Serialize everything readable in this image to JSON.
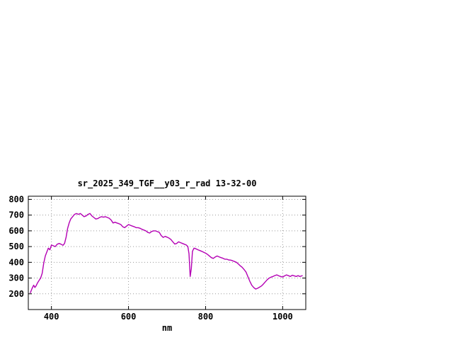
{
  "window": {
    "background": "#ffffff"
  },
  "chart_data": {
    "type": "line",
    "title": "sr_2025_349_TGF__y03_r_rad 13-32-00",
    "xlabel": "nm",
    "ylabel": "",
    "xlim": [
      340,
      1060
    ],
    "ylim": [
      100,
      820
    ],
    "xticks": [
      400,
      600,
      800,
      1000
    ],
    "yticks": [
      200,
      300,
      400,
      500,
      600,
      700,
      800
    ],
    "grid": true,
    "legend": "none",
    "line_color": "#b400b4",
    "series": [
      {
        "name": "sr_2025_349_TGF__y03_r_rad",
        "color": "#b400b4",
        "x": [
          345,
          350,
          354,
          357,
          360,
          364,
          368,
          372,
          376,
          380,
          384,
          388,
          392,
          396,
          400,
          405,
          410,
          415,
          420,
          425,
          430,
          434,
          438,
          442,
          446,
          450,
          455,
          460,
          465,
          470,
          475,
          480,
          485,
          490,
          495,
          500,
          505,
          510,
          515,
          520,
          525,
          530,
          535,
          540,
          545,
          550,
          555,
          560,
          565,
          570,
          575,
          580,
          585,
          590,
          595,
          600,
          605,
          610,
          615,
          620,
          625,
          630,
          635,
          640,
          645,
          650,
          655,
          660,
          665,
          670,
          675,
          680,
          685,
          690,
          695,
          700,
          705,
          710,
          715,
          720,
          725,
          730,
          735,
          740,
          745,
          750,
          754,
          757,
          760,
          763,
          766,
          770,
          775,
          780,
          785,
          790,
          795,
          800,
          805,
          810,
          815,
          820,
          825,
          830,
          835,
          840,
          845,
          850,
          855,
          860,
          865,
          870,
          875,
          880,
          885,
          890,
          895,
          900,
          905,
          910,
          915,
          920,
          925,
          930,
          935,
          940,
          945,
          950,
          955,
          960,
          965,
          970,
          975,
          980,
          985,
          990,
          995,
          1000,
          1005,
          1010,
          1015,
          1020,
          1025,
          1030,
          1035,
          1040,
          1045,
          1052
        ],
        "y": [
          205,
          235,
          255,
          240,
          250,
          270,
          285,
          300,
          330,
          395,
          440,
          465,
          490,
          480,
          510,
          505,
          500,
          515,
          520,
          515,
          508,
          520,
          560,
          615,
          650,
          675,
          690,
          705,
          710,
          705,
          710,
          700,
          690,
          695,
          705,
          710,
          695,
          685,
          675,
          678,
          685,
          690,
          687,
          690,
          685,
          680,
          668,
          650,
          655,
          650,
          646,
          640,
          626,
          620,
          630,
          640,
          635,
          630,
          626,
          620,
          620,
          616,
          610,
          605,
          600,
          590,
          586,
          596,
          600,
          600,
          595,
          590,
          570,
          558,
          565,
          560,
          554,
          545,
          530,
          516,
          520,
          530,
          525,
          520,
          515,
          510,
          500,
          455,
          310,
          360,
          470,
          490,
          486,
          480,
          475,
          470,
          464,
          458,
          450,
          440,
          430,
          425,
          434,
          440,
          435,
          430,
          426,
          420,
          420,
          415,
          414,
          410,
          405,
          400,
          390,
          378,
          368,
          354,
          338,
          308,
          278,
          254,
          240,
          230,
          235,
          242,
          250,
          262,
          276,
          290,
          300,
          306,
          310,
          316,
          320,
          314,
          310,
          306,
          314,
          320,
          315,
          310,
          318,
          314,
          310,
          315,
          310,
          316
        ]
      }
    ]
  }
}
